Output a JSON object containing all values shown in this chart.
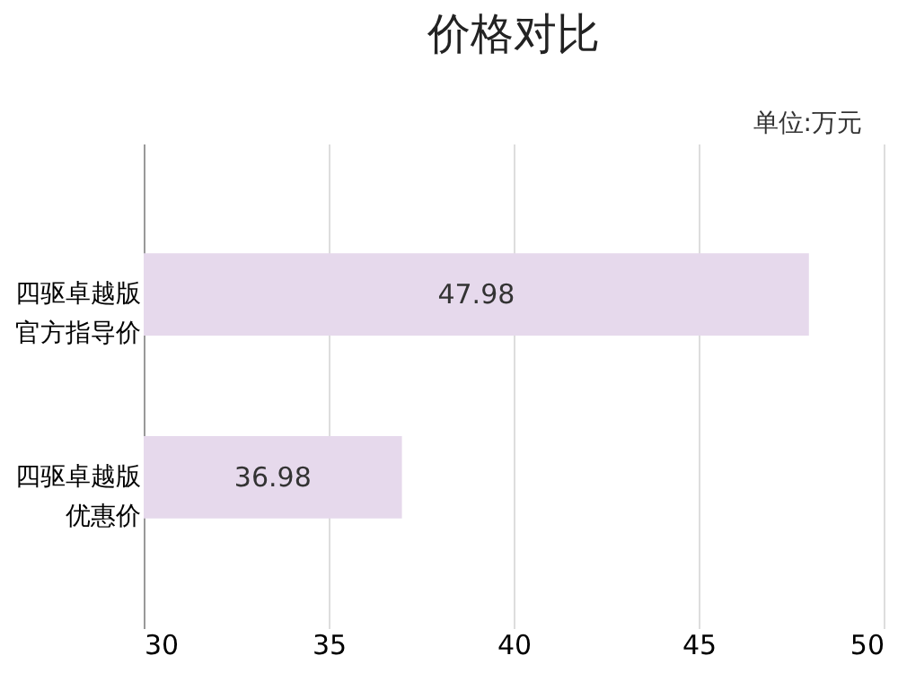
{
  "chart_data": {
    "type": "bar",
    "orientation": "horizontal",
    "title": "价格对比",
    "annotations": [
      "单位:万元"
    ],
    "categories": [
      "四驱卓越版官方指导价",
      "四驱卓越版优惠价"
    ],
    "values": [
      47.98,
      36.98
    ],
    "color": "#e6d9ec",
    "data_labels": true,
    "xlim": [
      30,
      50
    ],
    "xticks": [
      30,
      35,
      40,
      45,
      50
    ],
    "grid": "x"
  }
}
